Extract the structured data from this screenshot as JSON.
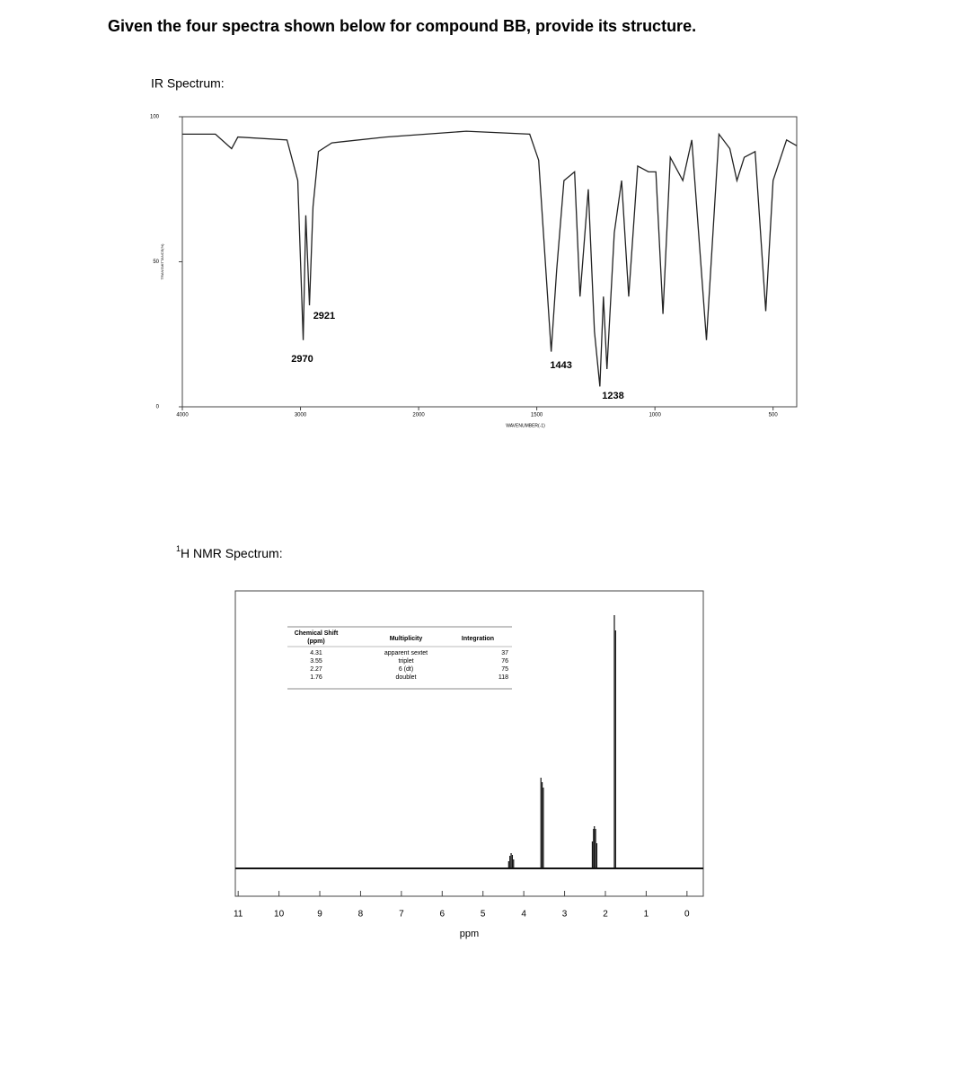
{
  "question": "Given the four spectra shown below for compound BB, provide its structure.",
  "ir_heading": "IR Spectrum:",
  "nmr_heading_sup": "1",
  "nmr_heading": "H NMR Spectrum:",
  "chart_data": [
    {
      "type": "line",
      "xlabel": "WAVENUMBER(-1)",
      "ylabel": "TRANSMITTANCE(%)",
      "xlim": [
        4000,
        400
      ],
      "x_scale_break": 2000,
      "xticks": [
        4000,
        3000,
        2000,
        1500,
        1000,
        500
      ],
      "ylim": [
        0,
        100
      ],
      "yticks": [
        0,
        50,
        100
      ],
      "x": [
        4000,
        3720,
        3583,
        3530,
        3114,
        3023,
        2977,
        2955,
        2924,
        2894,
        2848,
        2735,
        2280,
        1798,
        1530,
        1492,
        1439,
        1416,
        1385,
        1340,
        1317,
        1282,
        1256,
        1233,
        1218,
        1203,
        1172,
        1141,
        1111,
        1073,
        1027,
        996,
        966,
        935,
        882,
        844,
        782,
        729,
        683,
        653,
        622,
        576,
        531,
        500,
        443,
        400
      ],
      "series": [
        {
          "color": "#222222",
          "values": [
            94,
            94,
            89,
            93,
            92,
            78,
            23,
            66,
            35,
            69,
            88,
            91,
            93,
            95,
            94,
            85,
            19,
            47,
            78,
            81,
            38,
            75,
            26,
            7,
            38,
            13,
            60,
            78,
            38,
            83,
            81,
            81,
            32,
            86,
            78,
            92,
            23,
            94,
            89,
            78,
            86,
            88,
            33,
            78,
            92,
            90
          ]
        }
      ],
      "peak_labels": [
        2921,
        2970,
        1443,
        1238
      ],
      "peak_label_color": "#3a9a3a"
    },
    {
      "type": "spectrum",
      "xlabel": "ppm",
      "xlim": [
        11.07,
        -0.4
      ],
      "xticks": [
        11,
        10,
        9,
        8,
        7,
        6,
        5,
        4,
        3,
        2,
        1,
        0
      ],
      "ylim": [
        -31,
        309
      ],
      "x": [
        4.37,
        4.34,
        4.31,
        4.28,
        4.25,
        3.58,
        3.55,
        3.52,
        2.32,
        2.29,
        2.27,
        2.24,
        2.21,
        1.78,
        1.75
      ],
      "values": [
        8,
        14,
        17,
        15,
        10,
        101,
        96,
        90,
        30,
        44,
        47,
        44,
        28,
        282,
        265
      ],
      "color": "#111111",
      "table": {
        "headers": [
          "Chemical Shift",
          "Multiplicity",
          "Integration"
        ],
        "header_unit": "(ppm)",
        "rows": [
          [
            4.31,
            "apparent sextet",
            37
          ],
          [
            3.55,
            "triplet",
            76
          ],
          [
            2.27,
            "6 (dt)",
            75
          ],
          [
            1.76,
            "doublet",
            118
          ]
        ]
      }
    }
  ]
}
